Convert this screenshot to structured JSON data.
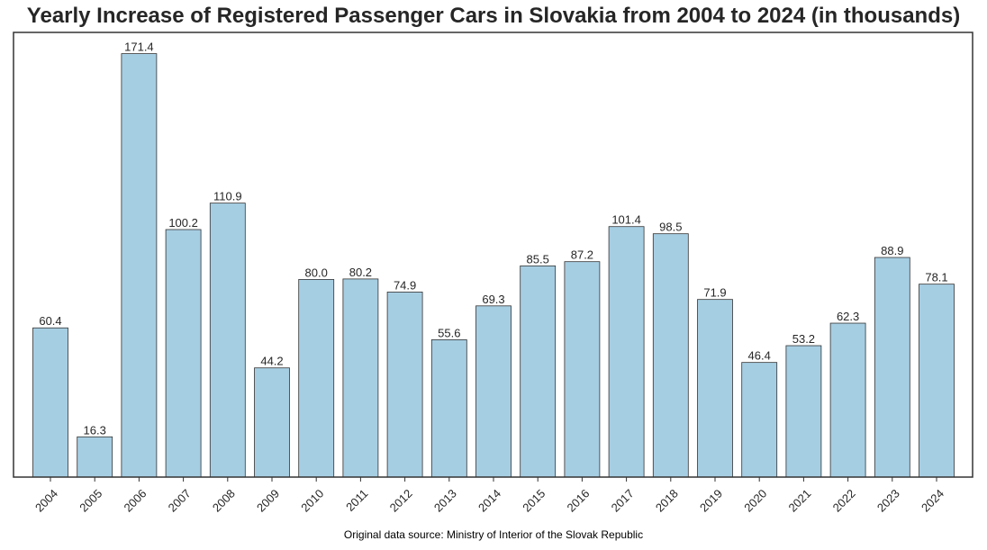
{
  "chart_data": {
    "type": "bar",
    "title": "Yearly Increase of Registered Passenger Cars in Slovakia from 2004 to 2024 (in thousands)",
    "categories": [
      "2004",
      "2005",
      "2006",
      "2007",
      "2008",
      "2009",
      "2010",
      "2011",
      "2012",
      "2013",
      "2014",
      "2015",
      "2016",
      "2017",
      "2018",
      "2019",
      "2020",
      "2021",
      "2022",
      "2023",
      "2024"
    ],
    "values": [
      60.4,
      16.3,
      171.4,
      100.2,
      110.9,
      44.2,
      80.0,
      80.2,
      74.9,
      55.6,
      69.3,
      85.5,
      87.2,
      101.4,
      98.5,
      71.9,
      46.4,
      53.2,
      62.3,
      88.9,
      78.1
    ],
    "value_labels": [
      "60.4",
      "16.3",
      "171.4",
      "100.2",
      "110.9",
      "44.2",
      "80.0",
      "80.2",
      "74.9",
      "55.6",
      "69.3",
      "85.5",
      "87.2",
      "101.4",
      "98.5",
      "71.9",
      "46.4",
      "53.2",
      "62.3",
      "88.9",
      "78.1"
    ],
    "xlabel": "",
    "ylabel": "",
    "ylim": [
      0,
      180
    ],
    "grid": false,
    "bar_color": "#a6cee3",
    "edge_color": "#333333",
    "source_note": "Original data source: Ministry of Interior of the Slovak Republic"
  }
}
